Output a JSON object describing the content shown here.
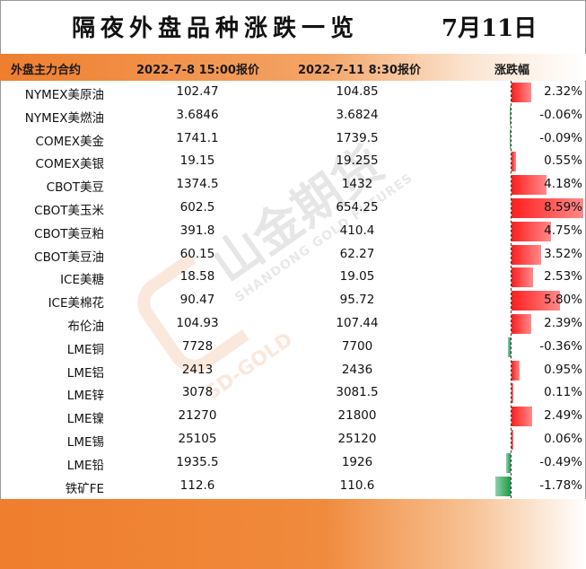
{
  "title": "隔夜外盘品种涨跌一览",
  "date": "7月11日",
  "headers": {
    "name": "外盘主力合约",
    "price1": "2022-7-8 15:00报价",
    "price2": "2022-7-11 8:30报价",
    "change": "涨跌幅"
  },
  "rows": [
    {
      "name": "NYMEX美原油",
      "p1": "102.47",
      "p2": "104.85",
      "chg": "2.32%",
      "pct": 2.32
    },
    {
      "name": "NYMEX美燃油",
      "p1": "3.6846",
      "p2": "3.6824",
      "chg": "-0.06%",
      "pct": -0.06
    },
    {
      "name": "COMEX美金",
      "p1": "1741.1",
      "p2": "1739.5",
      "chg": "-0.09%",
      "pct": -0.09
    },
    {
      "name": "COMEX美银",
      "p1": "19.15",
      "p2": "19.255",
      "chg": "0.55%",
      "pct": 0.55
    },
    {
      "name": "CBOT美豆",
      "p1": "1374.5",
      "p2": "1432",
      "chg": "4.18%",
      "pct": 4.18
    },
    {
      "name": "CBOT美玉米",
      "p1": "602.5",
      "p2": "654.25",
      "chg": "8.59%",
      "pct": 8.59
    },
    {
      "name": "CBOT美豆粕",
      "p1": "391.8",
      "p2": "410.4",
      "chg": "4.75%",
      "pct": 4.75
    },
    {
      "name": "CBOT美豆油",
      "p1": "60.15",
      "p2": "62.27",
      "chg": "3.52%",
      "pct": 3.52
    },
    {
      "name": "ICE美糖",
      "p1": "18.58",
      "p2": "19.05",
      "chg": "2.53%",
      "pct": 2.53
    },
    {
      "name": "ICE美棉花",
      "p1": "90.47",
      "p2": "95.72",
      "chg": "5.80%",
      "pct": 5.8
    },
    {
      "name": "布伦油",
      "p1": "104.93",
      "p2": "107.44",
      "chg": "2.39%",
      "pct": 2.39
    },
    {
      "name": "LME铜",
      "p1": "7728",
      "p2": "7700",
      "chg": "-0.36%",
      "pct": -0.36
    },
    {
      "name": "LME铝",
      "p1": "2413",
      "p2": "2436",
      "chg": "0.95%",
      "pct": 0.95
    },
    {
      "name": "LME锌",
      "p1": "3078",
      "p2": "3081.5",
      "chg": "0.11%",
      "pct": 0.11
    },
    {
      "name": "LME镍",
      "p1": "21270",
      "p2": "21800",
      "chg": "2.49%",
      "pct": 2.49
    },
    {
      "name": "LME锡",
      "p1": "25105",
      "p2": "25120",
      "chg": "0.06%",
      "pct": 0.06
    },
    {
      "name": "LME铅",
      "p1": "1935.5",
      "p2": "1926",
      "chg": "-0.49%",
      "pct": -0.49
    },
    {
      "name": "铁矿FE",
      "p1": "112.6",
      "p2": "110.6",
      "chg": "-1.78%",
      "pct": -1.78
    }
  ],
  "colors": {
    "accent_orange": "#ef7e2e",
    "up_red": "#ff1e1e",
    "down_green": "#1e9a4a"
  },
  "watermark": {
    "brand": "山金期货",
    "sub": "SHANDONG GOLD FUTURES",
    "gold": "SD-GOLD"
  }
}
